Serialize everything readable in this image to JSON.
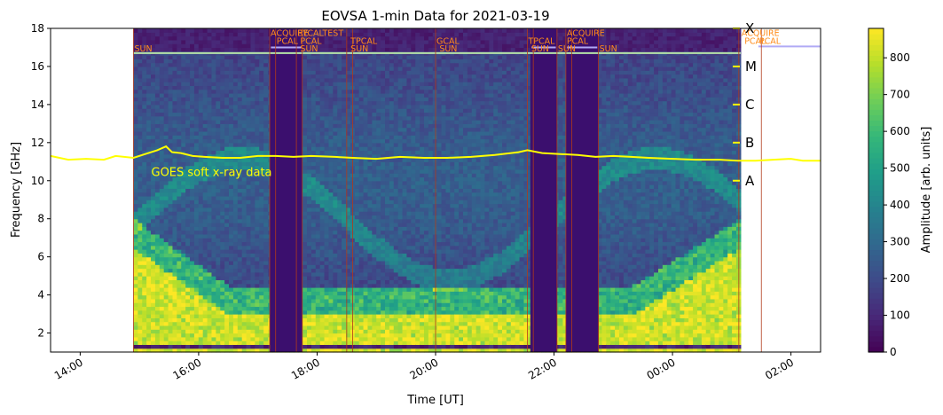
{
  "chart_data": {
    "type": "heatmap",
    "title": "EOVSA 1-min Data for 2021-03-19",
    "xlabel": "Time [UT]",
    "ylabel": "Frequency [GHz]",
    "ylim": [
      1.0,
      18.0
    ],
    "xlim_hours": [
      13.5,
      26.5
    ],
    "x_ticks": [
      {
        "hour": 14,
        "label": "14:00"
      },
      {
        "hour": 16,
        "label": "16:00"
      },
      {
        "hour": 18,
        "label": "18:00"
      },
      {
        "hour": 20,
        "label": "20:00"
      },
      {
        "hour": 22,
        "label": "22:00"
      },
      {
        "hour": 24,
        "label": "00:00"
      },
      {
        "hour": 26,
        "label": "02:00"
      }
    ],
    "y_ticks": [
      2,
      4,
      6,
      8,
      10,
      12,
      14,
      16,
      18
    ],
    "colorbar": {
      "label": "Amplitude [arb. units]",
      "range": [
        0,
        880
      ],
      "ticks": [
        0,
        100,
        200,
        300,
        400,
        500,
        600,
        700,
        800
      ],
      "colormap": [
        "#440154",
        "#482878",
        "#3e4a89",
        "#31688e",
        "#26828e",
        "#1f9e89",
        "#35b779",
        "#6ece58",
        "#b5de2b",
        "#fde725"
      ]
    },
    "data_window_hours": [
      14.9,
      25.15
    ],
    "gap_blocks_hours": [
      [
        17.2,
        17.75
      ],
      [
        21.6,
        22.05
      ],
      [
        22.2,
        22.75
      ]
    ],
    "scan_markers": [
      {
        "hour": 14.9,
        "label": "SUN",
        "row": 3
      },
      {
        "hour": 17.2,
        "label": "ACQUIRE",
        "row": 1
      },
      {
        "hour": 17.3,
        "label": "PCAL",
        "row": 2
      },
      {
        "hour": 17.7,
        "label": "SUN",
        "row": 3
      },
      {
        "hour": 17.7,
        "label": "PCAL",
        "row": 2
      },
      {
        "hour": 17.65,
        "label": "EYCALTEST",
        "row": 1
      },
      {
        "hour": 18.55,
        "label": "TPCAL",
        "row": 2
      },
      {
        "hour": 18.55,
        "label": "SUN",
        "row": 3
      },
      {
        "hour": 20.0,
        "label": "GCAL",
        "row": 2
      },
      {
        "hour": 20.05,
        "label": "SUN",
        "row": 3
      },
      {
        "hour": 21.55,
        "label": "TPCAL",
        "row": 2
      },
      {
        "hour": 21.6,
        "label": "SUN",
        "row": 3
      },
      {
        "hour": 22.05,
        "label": "SUN",
        "row": 3
      },
      {
        "hour": 22.2,
        "label": "ACQUIRE",
        "row": 1
      },
      {
        "hour": 22.2,
        "label": "PCAL",
        "row": 2
      },
      {
        "hour": 22.75,
        "label": "SUN",
        "row": 3
      },
      {
        "hour": 25.15,
        "label": "ACQUIRE",
        "row": 1
      },
      {
        "hour": 25.2,
        "label": "PCAL",
        "row": 2
      },
      {
        "hour": 25.45,
        "label": "PCAL",
        "row": 2
      }
    ],
    "goes": {
      "label": "GOES soft x-ray data",
      "color": "#ffff00",
      "levels": [
        {
          "label": "A",
          "freq_level": 10.0
        },
        {
          "label": "B",
          "freq_level": 12.0
        },
        {
          "label": "C",
          "freq_level": 14.0
        },
        {
          "label": "M",
          "freq_level": 16.0
        },
        {
          "label": "X",
          "freq_level": 18.0
        }
      ],
      "hours": [
        13.5,
        13.8,
        14.1,
        14.4,
        14.6,
        14.9,
        15.1,
        15.3,
        15.45,
        15.55,
        15.7,
        15.9,
        16.1,
        16.4,
        16.7,
        17.0,
        17.3,
        17.6,
        17.9,
        18.3,
        18.6,
        19.0,
        19.4,
        19.8,
        20.2,
        20.6,
        21.0,
        21.4,
        21.55,
        21.8,
        22.1,
        22.4,
        22.7,
        23.0,
        23.3,
        23.6,
        24.0,
        24.4,
        24.8,
        25.1,
        25.4,
        25.7,
        26.0,
        26.2,
        26.5
      ],
      "levels_series": [
        11.3,
        11.1,
        11.15,
        11.1,
        11.3,
        11.2,
        11.4,
        11.6,
        11.8,
        11.5,
        11.45,
        11.3,
        11.25,
        11.2,
        11.2,
        11.3,
        11.3,
        11.25,
        11.3,
        11.25,
        11.2,
        11.15,
        11.25,
        11.2,
        11.2,
        11.25,
        11.35,
        11.5,
        11.6,
        11.45,
        11.4,
        11.35,
        11.25,
        11.3,
        11.25,
        11.2,
        11.15,
        11.1,
        11.1,
        11.05,
        11.05,
        11.1,
        11.15,
        11.05,
        11.05
      ]
    }
  }
}
